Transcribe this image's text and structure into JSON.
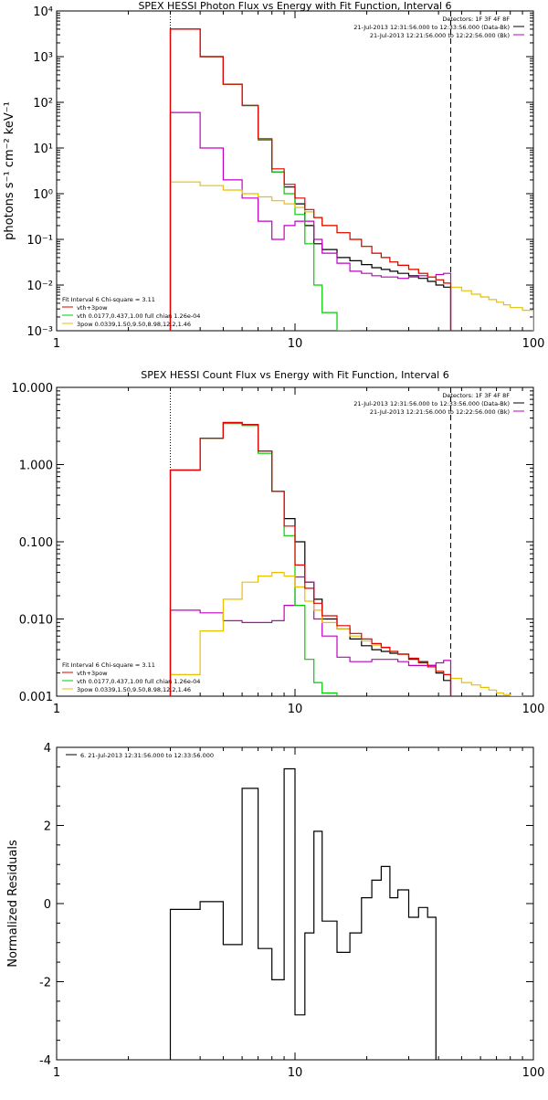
{
  "chart_data": [
    {
      "type": "line",
      "step": true,
      "title": "SPEX HESSI Photon Flux vs Energy with Fit Function, Interval 6",
      "xlabel": "",
      "ylabel": "photons s⁻¹ cm⁻² keV⁻¹",
      "xscale": "log",
      "yscale": "log",
      "xlim": [
        1,
        100
      ],
      "ylim": [
        0.001,
        10000
      ],
      "xticks": [
        "1",
        "10",
        "100"
      ],
      "yticks": [
        "10⁻³",
        "10⁻²",
        "10⁻¹",
        "10⁰",
        "10¹",
        "10²",
        "10³",
        "10⁴"
      ],
      "vlines": [
        {
          "x": 3,
          "style": "dotted"
        },
        {
          "x": 45,
          "style": "dashed"
        }
      ],
      "legend_top": [
        "Detectors: 1F 3F 4F 8F",
        "21-Jul-2013 12:31:56.000 to 12:33:56.000 (Data-Bk)",
        "21-Jul-2013 12:21:56.000 to 12:22:56.000 (Bk)"
      ],
      "legend_top_colors": [
        "",
        "#000000",
        "#c000c0"
      ],
      "legend_bottom": [
        "Fit Interval 6   Chi-square = 3.11",
        "vth+3pow",
        "vth 0.0177,0.437,1.00  full chian 1.26e-04",
        "3pow 0.0339,1.50,9.50,8.98,12.2,1.46"
      ],
      "legend_bottom_colors": [
        "",
        "#e00000",
        "#00cc00",
        "#e8c000"
      ],
      "bin_edges": [
        3,
        4,
        5,
        6,
        7,
        8,
        9,
        10,
        11,
        12,
        13,
        15,
        17,
        19,
        21,
        23,
        25,
        27,
        30,
        33,
        36,
        39,
        42,
        45,
        50,
        55,
        60,
        65,
        70,
        75,
        80,
        90,
        100
      ],
      "series": [
        {
          "name": "Data-Bk",
          "color": "#000000",
          "values": [
            4000,
            1000,
            250,
            85,
            15,
            3,
            1.4,
            0.6,
            0.2,
            0.08,
            0.06,
            0.04,
            0.034,
            0.028,
            0.024,
            0.022,
            0.02,
            0.018,
            0.016,
            0.014,
            0.012,
            0.01,
            0.009
          ]
        },
        {
          "name": "Bk",
          "color": "#c000c0",
          "values": [
            60,
            10,
            2,
            0.8,
            0.25,
            0.1,
            0.2,
            0.25,
            0.25,
            0.1,
            0.05,
            0.03,
            0.02,
            0.018,
            0.016,
            0.015,
            0.015,
            0.014,
            0.015,
            0.016,
            0.015,
            0.017,
            0.018
          ]
        },
        {
          "name": "vth",
          "color": "#00cc00",
          "values": [
            4000,
            1000,
            250,
            85,
            15,
            3,
            1.0,
            0.35,
            0.08,
            0.01,
            0.0025,
            0.001
          ]
        },
        {
          "name": "3pow",
          "color": "#e8c000",
          "values": [
            1.8,
            1.5,
            1.2,
            1.0,
            0.85,
            0.7,
            0.6,
            0.5,
            0.4,
            0.3,
            0.2,
            0.14,
            0.1,
            0.07,
            0.05,
            0.04,
            0.032,
            0.027,
            0.022,
            0.018,
            0.015,
            0.013,
            0.011,
            0.009,
            0.0075,
            0.0063,
            0.0055,
            0.0048,
            0.0042,
            0.0037,
            0.0032,
            0.0028
          ]
        },
        {
          "name": "vth+3pow",
          "color": "#e00000",
          "values": [
            4000,
            1000,
            250,
            86,
            16,
            3.5,
            1.6,
            0.8,
            0.45,
            0.3,
            0.2,
            0.14,
            0.1,
            0.07,
            0.05,
            0.04,
            0.032,
            0.027,
            0.022,
            0.018,
            0.015,
            0.013,
            0.011
          ]
        }
      ]
    },
    {
      "type": "line",
      "step": true,
      "title": "SPEX HESSI Count Flux vs Energy with Fit Function, Interval 6",
      "xlabel": "",
      "ylabel": "",
      "xscale": "log",
      "yscale": "log",
      "xlim": [
        1,
        100
      ],
      "ylim": [
        0.001,
        10
      ],
      "xticks": [
        "1",
        "10",
        "100"
      ],
      "yticks": [
        "0.001",
        "0.010",
        "0.100",
        "1.000",
        "10.000"
      ],
      "vlines": [
        {
          "x": 3,
          "style": "dotted"
        },
        {
          "x": 45,
          "style": "dashed"
        }
      ],
      "legend_top": [
        "Detectors: 1F 3F 4F 8F",
        "21-Jul-2013 12:31:56.000 to 12:33:56.000 (Data-Bk)",
        "21-Jul-2013 12:21:56.000 to 12:22:56.000 (Bk)"
      ],
      "legend_top_colors": [
        "",
        "#000000",
        "#c000c0"
      ],
      "legend_bottom": [
        "Fit Interval 6   Chi-square = 3.11",
        "vth+3pow",
        "vth 0.0177,0.437,1.00  full chian 1.26e-04",
        "3pow 0.0339,1.50,9.50,8.98,12.2,1.46"
      ],
      "legend_bottom_colors": [
        "",
        "#e00000",
        "#00cc00",
        "#e8c000"
      ],
      "bin_edges": [
        3,
        4,
        5,
        6,
        7,
        8,
        9,
        10,
        11,
        12,
        13,
        15,
        17,
        19,
        21,
        23,
        25,
        27,
        30,
        33,
        36,
        39,
        42,
        45,
        50,
        55,
        60,
        65,
        70,
        75,
        80,
        90,
        100
      ],
      "series": [
        {
          "name": "Data-Bk",
          "color": "#000000",
          "values": [
            0.85,
            2.2,
            3.5,
            3.3,
            1.5,
            0.45,
            0.2,
            0.1,
            0.03,
            0.018,
            0.01,
            0.0075,
            0.0055,
            0.0045,
            0.004,
            0.0038,
            0.0036,
            0.0035,
            0.003,
            0.0028,
            0.0025,
            0.002,
            0.0016
          ]
        },
        {
          "name": "Bk",
          "color": "#c000c0",
          "values": [
            0.013,
            0.012,
            0.0095,
            0.009,
            0.009,
            0.0095,
            0.015,
            0.035,
            0.03,
            0.01,
            0.006,
            0.0032,
            0.0028,
            0.0028,
            0.003,
            0.003,
            0.003,
            0.0028,
            0.0025,
            0.0025,
            0.0025,
            0.0027,
            0.0029
          ]
        },
        {
          "name": "vth",
          "color": "#00cc00",
          "values": [
            0.85,
            2.2,
            3.4,
            3.2,
            1.4,
            0.45,
            0.12,
            0.015,
            0.003,
            0.0015,
            0.0011,
            0.0009
          ]
        },
        {
          "name": "3pow",
          "color": "#e8c000",
          "values": [
            0.0019,
            0.007,
            0.018,
            0.03,
            0.036,
            0.04,
            0.036,
            0.026,
            0.017,
            0.013,
            0.009,
            0.0075,
            0.006,
            0.0052,
            0.0046,
            0.0042,
            0.0038,
            0.0035,
            0.0031,
            0.0027,
            0.0024,
            0.0021,
            0.0019,
            0.0017,
            0.0015,
            0.0014,
            0.0013,
            0.0012,
            0.0011,
            0.00105,
            0.001
          ]
        },
        {
          "name": "vth+3pow",
          "color": "#e00000",
          "values": [
            0.85,
            2.2,
            3.5,
            3.3,
            1.5,
            0.45,
            0.16,
            0.05,
            0.025,
            0.016,
            0.011,
            0.0082,
            0.0065,
            0.0055,
            0.0048,
            0.0043,
            0.0038,
            0.0035,
            0.0031,
            0.0027,
            0.0024,
            0.0021,
            0.0019
          ]
        }
      ]
    },
    {
      "type": "line",
      "step": true,
      "title": "",
      "xlabel": "",
      "ylabel": "Normalized Residuals",
      "xscale": "log",
      "yscale": "linear",
      "xlim": [
        1,
        100
      ],
      "ylim": [
        -4,
        4
      ],
      "xticks": [
        "1",
        "10",
        "100"
      ],
      "yticks": [
        "-4",
        "-2",
        "0",
        "2",
        "4"
      ],
      "legend_top": [
        "6. 21-Jul-2013 12:31:56.000 to 12:33:56.000"
      ],
      "legend_top_colors": [
        "#000000"
      ],
      "bin_edges": [
        3,
        4,
        5,
        6,
        7,
        8,
        9,
        10,
        11,
        12,
        13,
        15,
        17,
        19,
        21,
        23,
        25,
        27,
        30,
        33,
        36,
        39,
        42,
        45
      ],
      "series": [
        {
          "name": "6. 21-Jul-2013 12:31:56.000 to 12:33:56.000",
          "color": "#000000",
          "values": [
            -0.15,
            0.05,
            -1.05,
            2.95,
            -1.15,
            -1.95,
            3.45,
            -2.85,
            -0.75,
            1.85,
            -0.45,
            -1.25,
            -0.75,
            0.15,
            0.6,
            0.95,
            0.15,
            0.35,
            -0.35,
            -0.1,
            -0.35
          ]
        }
      ]
    }
  ]
}
